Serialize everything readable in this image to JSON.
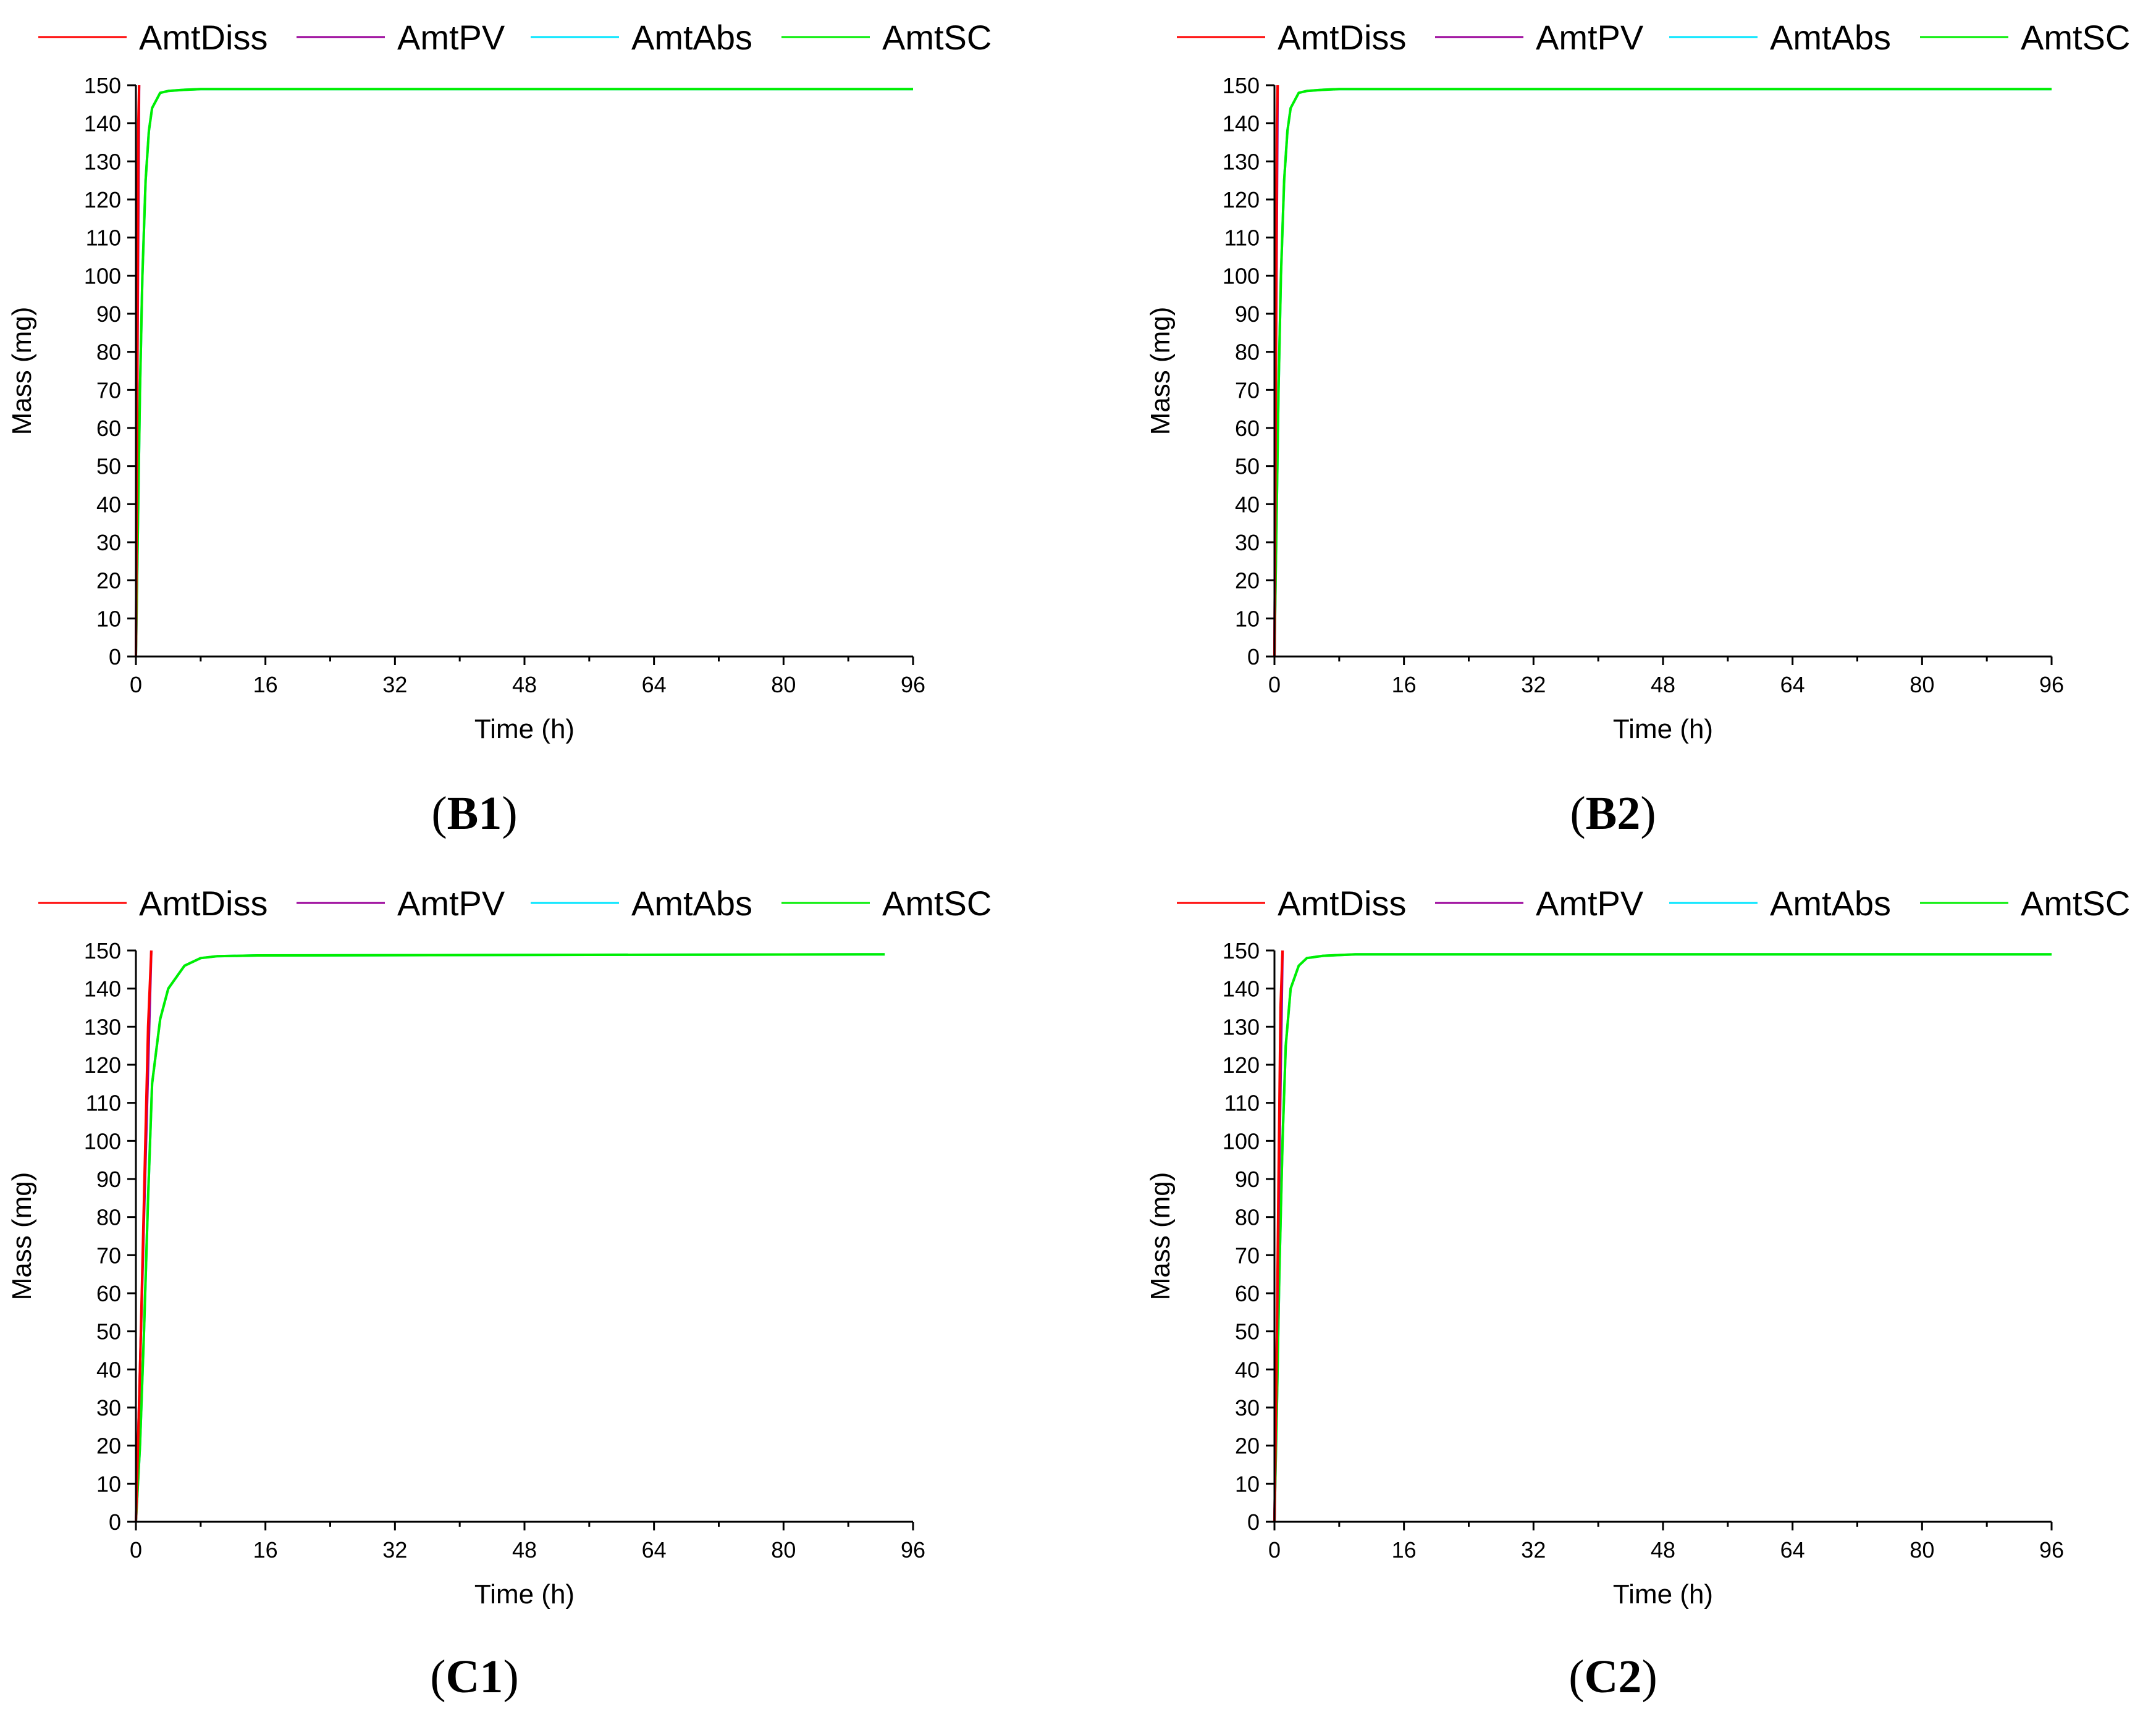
{
  "figure": {
    "legend_labels": [
      "AmtDiss",
      "AmtPV",
      "AmtAbs",
      "AmtSC"
    ]
  },
  "colors": {
    "AmtDiss": "#ff0000",
    "AmtPV": "#990099",
    "AmtAbs": "#00e5ff",
    "AmtSC": "#00ee00",
    "axis": "#000000"
  },
  "chart_data": [
    {
      "id": "B1",
      "type": "line",
      "panel_label": "B1",
      "xlabel": "Time (h)",
      "ylabel": "Mass (mg)",
      "xlim": [
        0,
        96
      ],
      "ylim": [
        0,
        150
      ],
      "xticks": [
        0,
        16,
        32,
        48,
        64,
        80,
        96
      ],
      "yticks": [
        0,
        10,
        20,
        30,
        40,
        50,
        60,
        70,
        80,
        90,
        100,
        110,
        120,
        130,
        140,
        150
      ],
      "legend": "top",
      "series": [
        {
          "name": "AmtDiss",
          "x": [
            0,
            0.1,
            0.2,
            0.3,
            0.4
          ],
          "y": [
            0,
            40,
            90,
            140,
            150
          ]
        },
        {
          "name": "AmtPV",
          "x": [
            0,
            0.2,
            0.4
          ],
          "y": [
            0,
            80,
            150
          ]
        },
        {
          "name": "AmtAbs",
          "x": [
            0,
            0.25,
            0.5,
            0.8,
            1.2,
            1.6,
            2.0,
            3.0,
            4.0,
            6.0,
            8.0,
            96
          ],
          "y": [
            0,
            35,
            70,
            100,
            125,
            138,
            144,
            148,
            148.5,
            148.8,
            149,
            149
          ]
        },
        {
          "name": "AmtSC",
          "x": [
            0,
            0.25,
            0.5,
            0.8,
            1.2,
            1.6,
            2.0,
            3.0,
            4.0,
            6.0,
            8.0,
            96
          ],
          "y": [
            0,
            35,
            70,
            100,
            125,
            138,
            144,
            148,
            148.5,
            148.8,
            149,
            149
          ]
        }
      ]
    },
    {
      "id": "B2",
      "type": "line",
      "panel_label": "B2",
      "xlabel": "Time (h)",
      "ylabel": "Mass (mg)",
      "xlim": [
        0,
        96
      ],
      "ylim": [
        0,
        150
      ],
      "xticks": [
        0,
        16,
        32,
        48,
        64,
        80,
        96
      ],
      "yticks": [
        0,
        10,
        20,
        30,
        40,
        50,
        60,
        70,
        80,
        90,
        100,
        110,
        120,
        130,
        140,
        150
      ],
      "legend": "top",
      "series": [
        {
          "name": "AmtDiss",
          "x": [
            0,
            0.1,
            0.2,
            0.3,
            0.4
          ],
          "y": [
            0,
            40,
            90,
            140,
            150
          ]
        },
        {
          "name": "AmtPV",
          "x": [
            0,
            0.2,
            0.4
          ],
          "y": [
            0,
            80,
            150
          ]
        },
        {
          "name": "AmtAbs",
          "x": [
            0,
            0.25,
            0.5,
            0.8,
            1.2,
            1.6,
            2.0,
            3.0,
            4.0,
            6.0,
            8.0,
            96
          ],
          "y": [
            0,
            35,
            70,
            100,
            125,
            138,
            144,
            148,
            148.5,
            148.8,
            149,
            149
          ]
        },
        {
          "name": "AmtSC",
          "x": [
            0,
            0.25,
            0.5,
            0.8,
            1.2,
            1.6,
            2.0,
            3.0,
            4.0,
            6.0,
            8.0,
            96
          ],
          "y": [
            0,
            35,
            70,
            100,
            125,
            138,
            144,
            148,
            148.5,
            148.8,
            149,
            149
          ]
        }
      ]
    },
    {
      "id": "C1",
      "type": "line",
      "panel_label": "C1",
      "xlabel": "Time (h)",
      "ylabel": "Mass (mg)",
      "xlim": [
        0,
        96
      ],
      "ylim": [
        0,
        150
      ],
      "xticks": [
        0,
        16,
        32,
        48,
        64,
        80,
        96
      ],
      "yticks": [
        0,
        10,
        20,
        30,
        40,
        50,
        60,
        70,
        80,
        90,
        100,
        110,
        120,
        130,
        140,
        150
      ],
      "legend": "top",
      "series": [
        {
          "name": "AmtDiss",
          "x": [
            0,
            0.5,
            1.0,
            1.5,
            1.9
          ],
          "y": [
            0,
            40,
            85,
            130,
            150
          ]
        },
        {
          "name": "AmtPV",
          "x": [
            0,
            1.0,
            1.9
          ],
          "y": [
            0,
            80,
            150
          ]
        },
        {
          "name": "AmtAbs",
          "x": [
            0,
            0.5,
            1.0,
            1.5,
            2.0,
            3.0,
            4.0,
            6.0,
            8.0,
            10.0,
            15.0,
            92.5
          ],
          "y": [
            0,
            20,
            50,
            85,
            115,
            132,
            140,
            146,
            148,
            148.5,
            148.7,
            149
          ]
        },
        {
          "name": "AmtSC",
          "x": [
            0,
            0.5,
            1.0,
            1.5,
            2.0,
            3.0,
            4.0,
            6.0,
            8.0,
            10.0,
            15.0,
            92.5
          ],
          "y": [
            0,
            20,
            50,
            85,
            115,
            132,
            140,
            146,
            148,
            148.5,
            148.7,
            149
          ]
        }
      ]
    },
    {
      "id": "C2",
      "type": "line",
      "panel_label": "C2",
      "xlabel": "Time (h)",
      "ylabel": "Mass (mg)",
      "xlim": [
        0,
        96
      ],
      "ylim": [
        0,
        150
      ],
      "xticks": [
        0,
        16,
        32,
        48,
        64,
        80,
        96
      ],
      "yticks": [
        0,
        10,
        20,
        30,
        40,
        50,
        60,
        70,
        80,
        90,
        100,
        110,
        120,
        130,
        140,
        150
      ],
      "legend": "top",
      "series": [
        {
          "name": "AmtDiss",
          "x": [
            0,
            0.25,
            0.5,
            0.75,
            1.0
          ],
          "y": [
            0,
            40,
            90,
            135,
            150
          ]
        },
        {
          "name": "AmtPV",
          "x": [
            0,
            0.5,
            1.0
          ],
          "y": [
            0,
            80,
            150
          ]
        },
        {
          "name": "AmtAbs",
          "x": [
            0,
            0.3,
            0.6,
            1.0,
            1.4,
            2.0,
            3.0,
            4.0,
            6.0,
            10.0,
            96
          ],
          "y": [
            0,
            30,
            65,
            100,
            125,
            140,
            146,
            148,
            148.6,
            149,
            149
          ]
        },
        {
          "name": "AmtSC",
          "x": [
            0,
            0.3,
            0.6,
            1.0,
            1.4,
            2.0,
            3.0,
            4.0,
            6.0,
            10.0,
            96
          ],
          "y": [
            0,
            30,
            65,
            100,
            125,
            140,
            146,
            148,
            148.6,
            149,
            149
          ]
        }
      ]
    }
  ]
}
